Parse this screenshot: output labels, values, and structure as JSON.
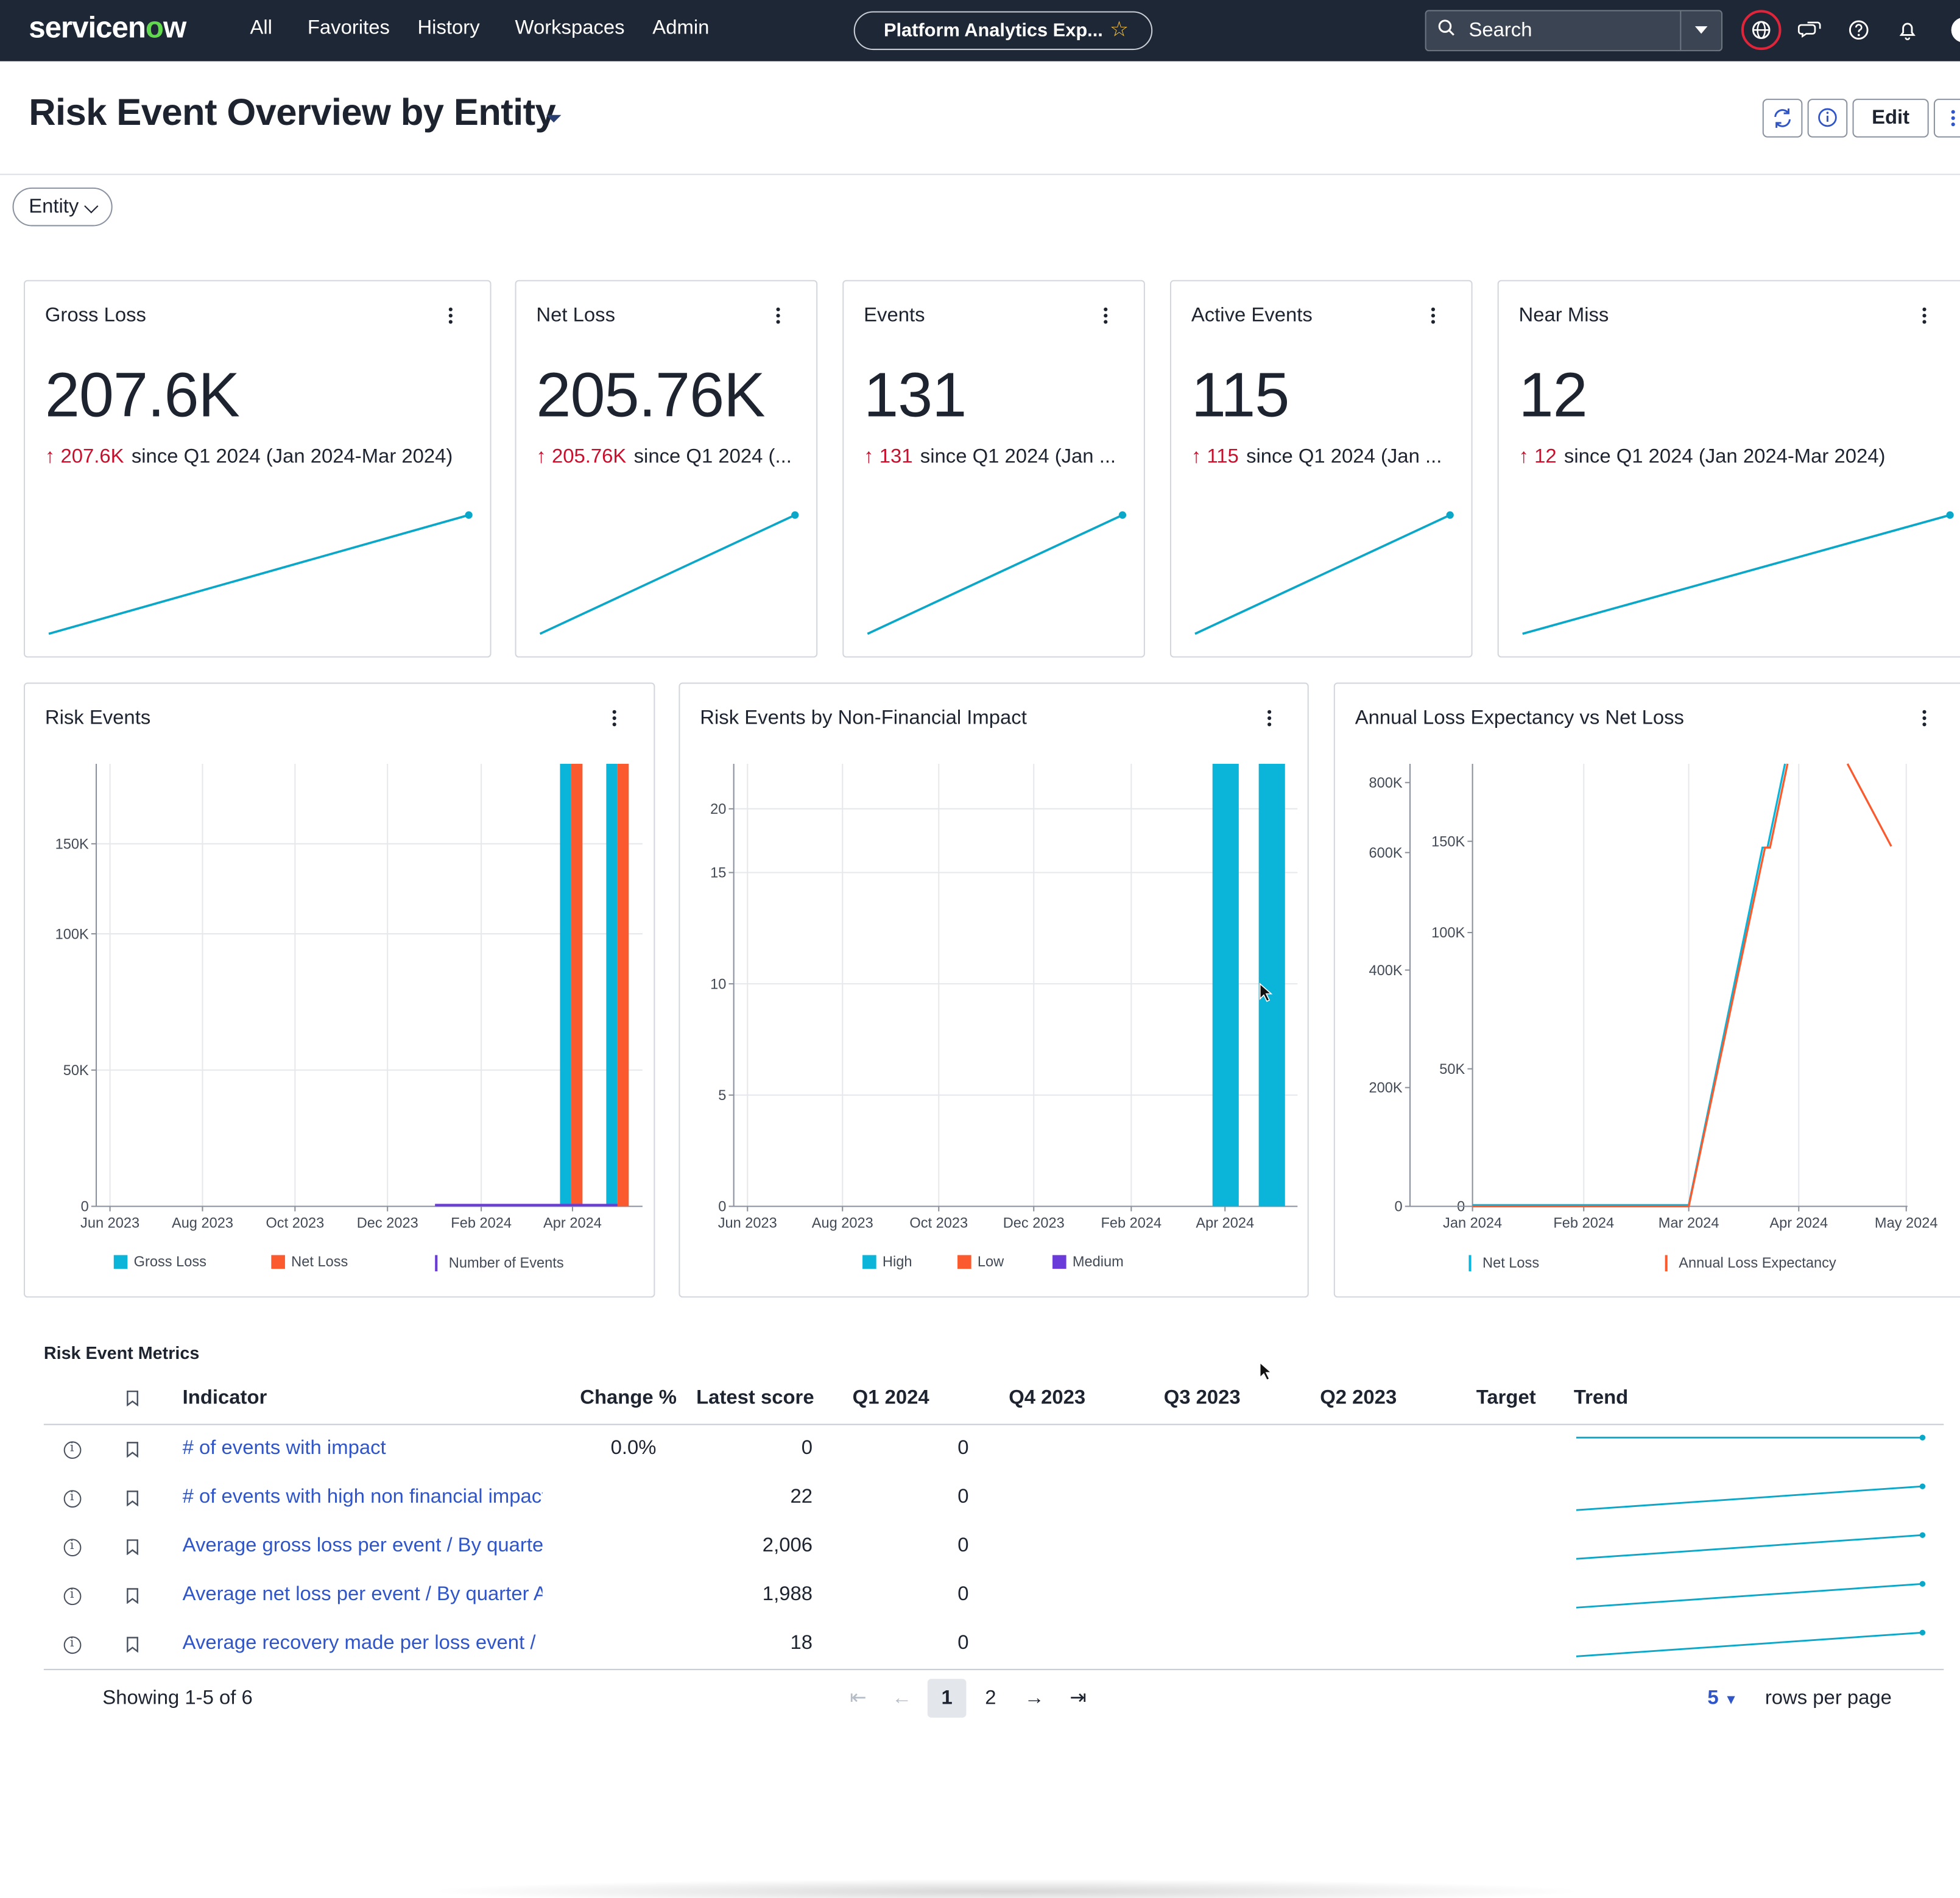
{
  "nav": {
    "logo_prefix": "servicen",
    "logo_o": "o",
    "logo_suffix": "w",
    "links": [
      "All",
      "Favorites",
      "History",
      "Workspaces",
      "Admin"
    ],
    "workspace_pill": "Platform Analytics Exp...",
    "search_placeholder": "Search"
  },
  "header": {
    "title": "Risk Event Overview by Entity",
    "edit_label": "Edit"
  },
  "filter": {
    "label": "Entity"
  },
  "kpis": [
    {
      "title": "Gross Loss",
      "value": "207.6K",
      "delta": "207.6K",
      "since": "since Q1 2024 (Jan 2024-Mar 2024)",
      "trend": [
        0,
        207.6
      ]
    },
    {
      "title": "Net Loss",
      "value": "205.76K",
      "delta": "205.76K",
      "since": "since Q1 2024 (...",
      "trend": [
        0,
        205.76
      ]
    },
    {
      "title": "Events",
      "value": "131",
      "delta": "131",
      "since": "since Q1 2024 (Jan ...",
      "trend": [
        0,
        131
      ]
    },
    {
      "title": "Active Events",
      "value": "115",
      "delta": "115",
      "since": "since Q1 2024 (Jan ...",
      "trend": [
        0,
        115
      ]
    },
    {
      "title": "Near Miss",
      "value": "12",
      "delta": "12",
      "since": "since Q1 2024 (Jan 2024-Mar 2024)",
      "trend": [
        0,
        12
      ]
    }
  ],
  "chart_data": [
    {
      "type": "bar",
      "title": "Risk Events",
      "x_ticks": [
        "Jun 2023",
        "Aug 2023",
        "Oct 2023",
        "Dec 2023",
        "Feb 2024",
        "Apr 2024"
      ],
      "y_ticks": [
        "0",
        "50K",
        "100K",
        "150K"
      ],
      "ylim": [
        0,
        162000
      ],
      "categories": [
        "Apr 2024",
        "May 2024"
      ],
      "series": [
        {
          "name": "Gross Loss",
          "color": "#0bb5d9",
          "values": [
            162000,
            162000
          ]
        },
        {
          "name": "Net Loss",
          "color": "#fb5a2e",
          "values": [
            162000,
            162000
          ]
        },
        {
          "name": "Number of Events",
          "color": "#6a3bd8",
          "values": [
            131,
            131
          ]
        }
      ],
      "legend": "bottom"
    },
    {
      "type": "bar",
      "title": "Risk Events by Non-Financial Impact",
      "x_ticks": [
        "Jun 2023",
        "Aug 2023",
        "Oct 2023",
        "Dec 2023",
        "Feb 2024",
        "Apr 2024"
      ],
      "y_ticks": [
        "0",
        "5",
        "10",
        "15",
        "20"
      ],
      "ylim": [
        0,
        22
      ],
      "categories": [
        "Apr 2024",
        "May 2024"
      ],
      "series": [
        {
          "name": "High",
          "color": "#0bb5d9",
          "values": [
            22,
            22
          ]
        },
        {
          "name": "Low",
          "color": "#fb5a2e",
          "values": [
            0,
            0
          ]
        },
        {
          "name": "Medium",
          "color": "#6a3bd8",
          "values": [
            0,
            0
          ]
        }
      ],
      "legend": "bottom"
    },
    {
      "type": "line",
      "title": "Annual Loss Expectancy vs Net Loss",
      "x_ticks": [
        "Jan 2024",
        "Feb 2024",
        "Mar 2024",
        "Apr 2024",
        "May 2024"
      ],
      "y_ticks_left": [
        "0",
        "200K",
        "400K",
        "600K",
        "800K"
      ],
      "y_ticks_right": [
        "0",
        "50K",
        "100K",
        "150K"
      ],
      "series": [
        {
          "name": "Net Loss",
          "color": "#0bb5d9"
        },
        {
          "name": "Annual Loss Expectancy",
          "color": "#fb5a2e"
        }
      ],
      "legend": "bottom"
    }
  ],
  "table": {
    "title": "Risk Event Metrics",
    "headers": [
      "Indicator",
      "Change %",
      "Latest score",
      "Q1 2024",
      "Q4 2023",
      "Q3 2023",
      "Q2 2023",
      "Target",
      "Trend"
    ],
    "rows": [
      {
        "indicator": "# of events with impact",
        "change": "0.0%",
        "latest": "0",
        "q1_2024": "0",
        "trend": [
          1,
          1
        ]
      },
      {
        "indicator": "# of events with high non financial impact",
        "change": "",
        "latest": "22",
        "q1_2024": "0",
        "trend": [
          0,
          1
        ]
      },
      {
        "indicator": "Average gross loss per event / By quarter AVG",
        "change": "",
        "latest": "2,006",
        "q1_2024": "0",
        "trend": [
          0,
          1
        ]
      },
      {
        "indicator": "Average net loss per event / By quarter AVG",
        "change": "",
        "latest": "1,988",
        "q1_2024": "0",
        "trend": [
          0,
          1
        ]
      },
      {
        "indicator": "Average recovery made per loss event / By quarter",
        "change": "",
        "latest": "18",
        "q1_2024": "0",
        "trend": [
          0,
          1
        ]
      }
    ],
    "showing": "Showing 1-5 of 6",
    "pages": [
      "1",
      "2"
    ],
    "rows_per_page_value": "5",
    "rows_per_page_label": "rows per page"
  }
}
